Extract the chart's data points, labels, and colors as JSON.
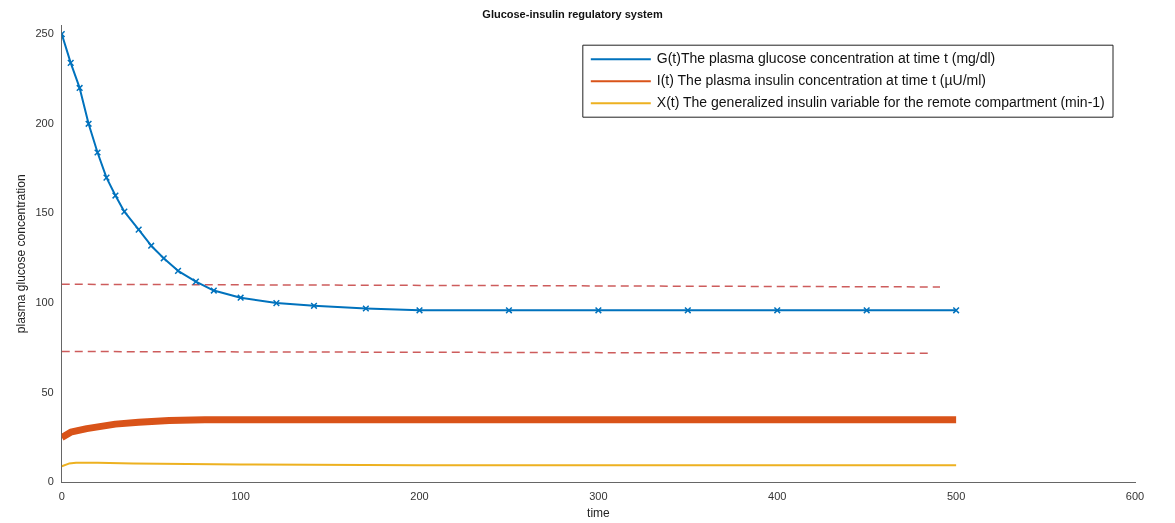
{
  "chart_data": {
    "type": "line",
    "title": "Glucose-insulin regulatory system",
    "xlabel": "time",
    "ylabel": "plasma glucose concentration",
    "xlim": [
      0,
      600
    ],
    "xticks": [
      0,
      100,
      200,
      300,
      400,
      500,
      600
    ],
    "ylim": [
      0,
      255
    ],
    "yticks": [
      0,
      50,
      100,
      150,
      200,
      250
    ],
    "grid": false,
    "legend": "top right",
    "series": [
      {
        "name": "G(t)The plasma glucose concentration at time t (mg/dl)",
        "color": "#0072bd",
        "marker": "cross",
        "x": [
          0,
          5,
          10,
          15,
          20,
          25,
          30,
          35,
          43,
          50,
          57,
          65,
          75,
          85,
          100,
          120,
          141,
          170,
          200,
          250,
          300,
          350,
          400,
          450,
          500
        ],
        "values": [
          250,
          234,
          220,
          200,
          184,
          170,
          160,
          151,
          141,
          132,
          125,
          118,
          112,
          107,
          103,
          100,
          98.5,
          97,
          96,
          96,
          96,
          96,
          96,
          96,
          96
        ]
      },
      {
        "name": "I(t) The plasma insulin concentration at time t (µU/ml)",
        "color": "#d95319",
        "x": [
          0,
          5,
          14,
          30,
          43,
          60,
          80,
          150,
          300,
          500
        ],
        "values": [
          25,
          28,
          30,
          32.5,
          33.5,
          34.5,
          35,
          35,
          35,
          35
        ]
      },
      {
        "name": "X(t) The generalized insulin variable for the remote compartment (min-1)",
        "color": "#edb120",
        "x": [
          0,
          4,
          8,
          20,
          40,
          100,
          200,
          300,
          500
        ],
        "values": [
          9,
          10.5,
          11,
          11,
          10.5,
          10,
          9.5,
          9.5,
          9.5
        ]
      },
      {
        "color": "#cd5c5c",
        "line_style": "dashed",
        "x": [
          0,
          491
        ],
        "values": [
          110.5,
          109
        ]
      },
      {
        "color": "#cd5c5c",
        "line_style": "dashed",
        "x": [
          0,
          485
        ],
        "values": [
          73,
          72
        ]
      }
    ]
  }
}
